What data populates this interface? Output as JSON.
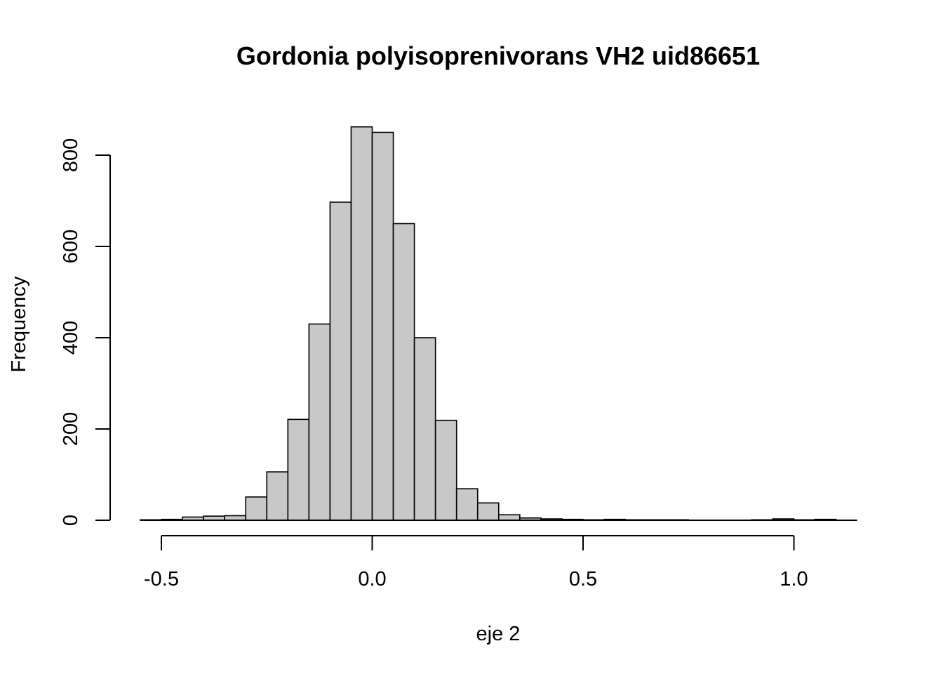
{
  "chart_data": {
    "type": "bar",
    "subtype": "histogram",
    "title": "Gordonia polyisoprenivorans VH2 uid86651",
    "xlabel": "eje 2",
    "ylabel": "Frequency",
    "bin_width": 0.05,
    "bin_start": -0.55,
    "values": [
      1,
      2,
      7,
      9,
      10,
      51,
      106,
      221,
      430,
      697,
      862,
      850,
      650,
      400,
      219,
      69,
      38,
      12,
      5,
      3,
      2,
      1,
      2,
      1,
      1,
      1,
      0,
      0,
      0,
      1,
      3,
      1,
      2
    ],
    "xlim": [
      -0.55,
      1.15
    ],
    "ylim": [
      0,
      862
    ],
    "x_ticks": [
      -0.5,
      0.0,
      0.5,
      1.0
    ],
    "x_tick_labels": [
      "-0.5",
      "0.0",
      "0.5",
      "1.0"
    ],
    "y_ticks": [
      0,
      200,
      400,
      600,
      800
    ],
    "y_tick_labels": [
      "0",
      "200",
      "400",
      "600",
      "800"
    ],
    "bar_fill": "#c8c8c8",
    "bar_stroke": "#000000",
    "grid": false,
    "legend": "none"
  }
}
